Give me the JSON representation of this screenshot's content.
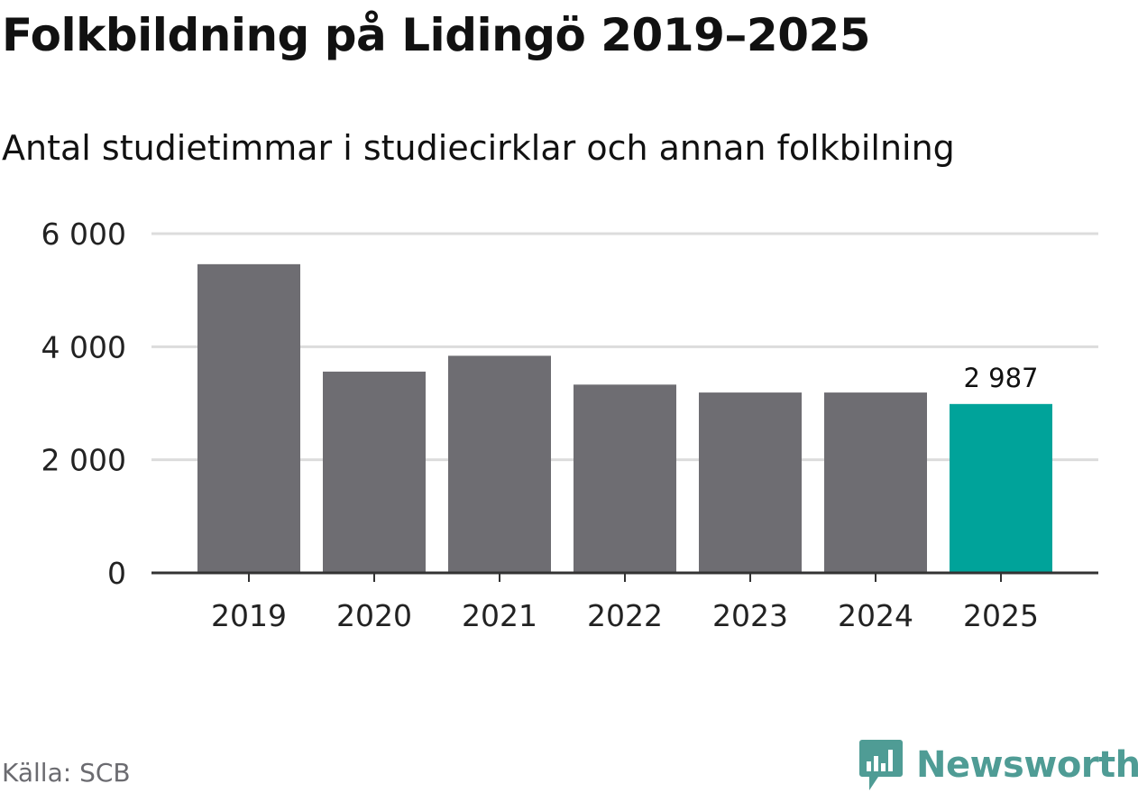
{
  "header": {
    "title": "Folkbildning på Lidingö 2019–2025",
    "subtitle": "Antal studietimmar i studiecirklar och annan folkbilning"
  },
  "footer": {
    "source": "Källa: SCB",
    "brand": "Newsworthy"
  },
  "colors": {
    "bar_default": "#6e6d72",
    "bar_highlight": "#00a39a",
    "gridline": "#dcdcdc",
    "axis": "#333333",
    "brand": "#4f9c95"
  },
  "chart_data": {
    "type": "bar",
    "title": "Folkbildning på Lidingö 2019–2025",
    "subtitle": "Antal studietimmar i studiecirklar och annan folkbilning",
    "xlabel": "",
    "ylabel": "",
    "categories": [
      "2019",
      "2020",
      "2021",
      "2022",
      "2023",
      "2024",
      "2025"
    ],
    "values": [
      5460,
      3560,
      3840,
      3330,
      3190,
      3190,
      2987
    ],
    "highlight_index": 6,
    "data_labels": [
      {
        "index": 6,
        "text": "2 987"
      }
    ],
    "ylim": [
      0,
      6000
    ],
    "yticks": [
      0,
      2000,
      4000,
      6000
    ],
    "ytick_labels": [
      "0",
      "2 000",
      "4 000",
      "6 000"
    ],
    "grid": true,
    "legend": "none"
  }
}
